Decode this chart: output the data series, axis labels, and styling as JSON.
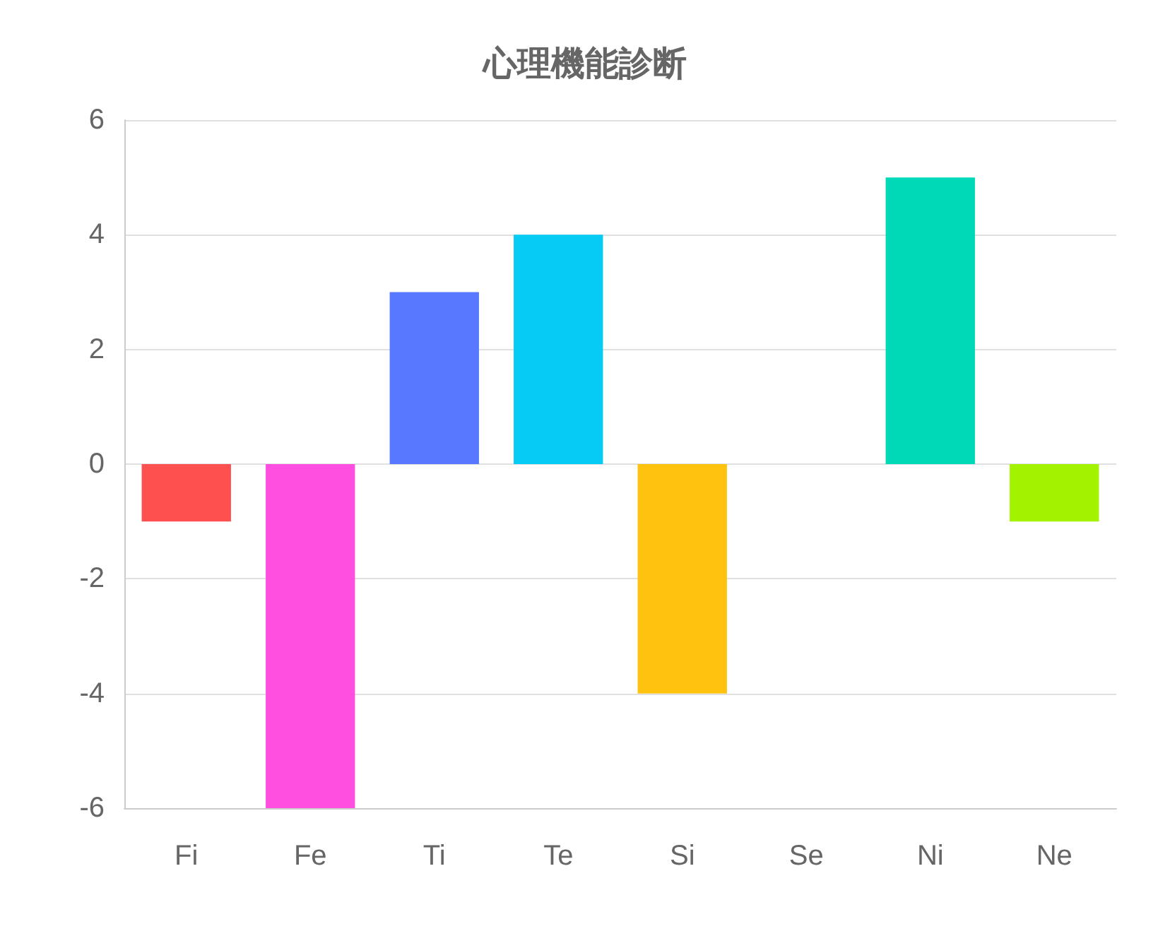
{
  "chart_data": {
    "type": "bar",
    "title": "心理機能診断",
    "categories": [
      "Fi",
      "Fe",
      "Ti",
      "Te",
      "Si",
      "Se",
      "Ni",
      "Ne"
    ],
    "values": [
      -1,
      -6,
      3,
      4,
      -4,
      0,
      5,
      -1
    ],
    "colors": [
      "#ff5050",
      "#ff4fe0",
      "#5778ff",
      "#05cbf5",
      "#ffc20e",
      "#cccccc",
      "#00d9b8",
      "#a3f200"
    ],
    "ylim": [
      -6,
      6
    ],
    "yticks": [
      -6,
      -4,
      -2,
      0,
      2,
      4,
      6
    ],
    "grid": "y"
  }
}
